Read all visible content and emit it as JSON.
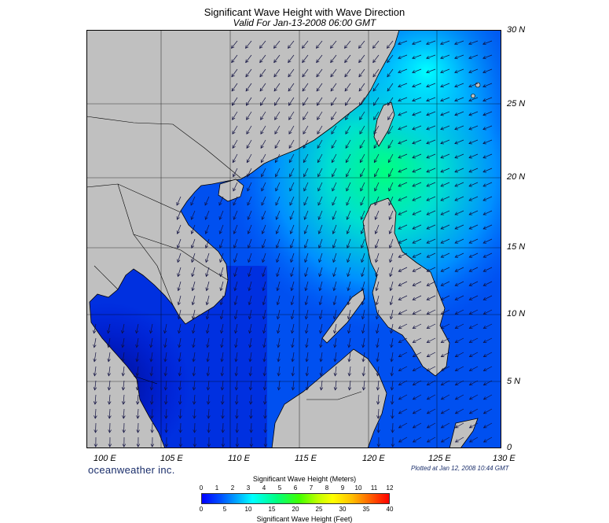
{
  "title": "Significant Wave Height with Wave Direction",
  "subtitle": "Valid For Jan-13-2008 06:00 GMT",
  "brand": "oceanweather inc.",
  "plotted": "Plotted at Jan 12, 2008 10:44 GMT",
  "lat_labels": [
    "30 N",
    "25 N",
    "20 N",
    "15 N",
    "10 N",
    "5 N",
    "0"
  ],
  "lon_labels": [
    "100 E",
    "105 E",
    "110 E",
    "115 E",
    "120 E",
    "125 E",
    "130 E"
  ],
  "legend": {
    "title_m": "Significant Wave Height (Meters)",
    "title_f": "Significant Wave Height (Feet)",
    "ticks_m": [
      "0",
      "1",
      "2",
      "3",
      "4",
      "5",
      "6",
      "7",
      "8",
      "9",
      "10",
      "11",
      "12"
    ],
    "ticks_f": [
      "0",
      "5",
      "10",
      "15",
      "20",
      "25",
      "30",
      "35",
      "40"
    ],
    "colors": [
      "#0000ff",
      "#00a0ff",
      "#00ffff",
      "#40ff00",
      "#ffff00",
      "#ff0000"
    ]
  },
  "colors": {
    "land": "#c0c0c0",
    "sea_low": "#0033ff",
    "sea_mid": "#0080ff",
    "sea_high": "#00ffaa"
  }
}
